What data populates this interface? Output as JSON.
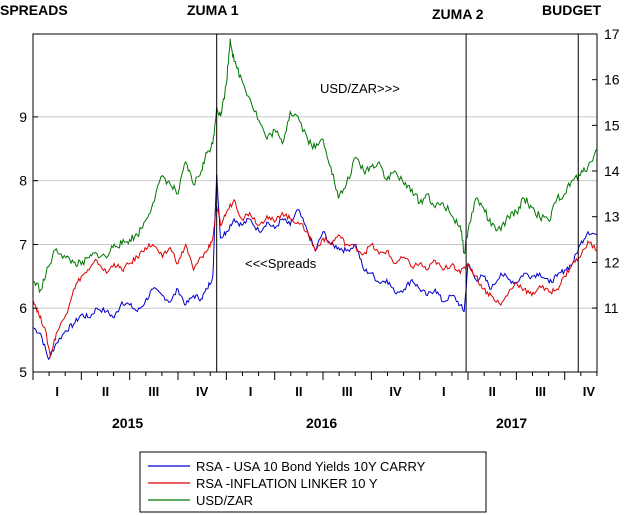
{
  "chart_data": {
    "type": "line",
    "top_labels": {
      "left_axis_title": "SPREADS",
      "events": [
        "ZUMA 1",
        "ZUMA 2",
        "BUDGET"
      ]
    },
    "annotations": {
      "usdzar": "USD/ZAR>>>",
      "spreads": "<<<Spreads"
    },
    "left_axis": {
      "ylim": [
        5,
        10.3
      ],
      "ticks": [
        5,
        6,
        7,
        8,
        9
      ]
    },
    "right_axis": {
      "ylim": [
        9.6,
        17
      ],
      "ticks": [
        11,
        12,
        13,
        14,
        15,
        16,
        17
      ]
    },
    "x_axis": {
      "xlim": [
        2015.0,
        2017.917
      ],
      "years": [
        {
          "label": "2015",
          "center": 2015.5
        },
        {
          "label": "2016",
          "center": 2016.5
        },
        {
          "label": "2017",
          "center": 2017.5
        }
      ],
      "quarter_labels": [
        "I",
        "II",
        "III",
        "IV"
      ]
    },
    "events": [
      {
        "label": "ZUMA 1",
        "x": 2015.95
      },
      {
        "label": "ZUMA 2",
        "x": 2017.24
      },
      {
        "label": "BUDGET",
        "x": 2017.82
      }
    ],
    "series": [
      {
        "name": "RSA - USA 10 Bond Yields 10Y CARRY",
        "color": "#0000cc",
        "axis": "left",
        "points": [
          [
            2015.0,
            5.7
          ],
          [
            2015.04,
            5.6
          ],
          [
            2015.08,
            5.2
          ],
          [
            2015.12,
            5.45
          ],
          [
            2015.17,
            5.65
          ],
          [
            2015.21,
            5.75
          ],
          [
            2015.25,
            5.9
          ],
          [
            2015.29,
            5.85
          ],
          [
            2015.33,
            6.0
          ],
          [
            2015.38,
            5.95
          ],
          [
            2015.42,
            5.85
          ],
          [
            2015.46,
            6.1
          ],
          [
            2015.5,
            6.05
          ],
          [
            2015.54,
            5.95
          ],
          [
            2015.58,
            6.1
          ],
          [
            2015.62,
            6.3
          ],
          [
            2015.67,
            6.2
          ],
          [
            2015.71,
            6.1
          ],
          [
            2015.75,
            6.3
          ],
          [
            2015.79,
            6.05
          ],
          [
            2015.83,
            6.2
          ],
          [
            2015.87,
            6.15
          ],
          [
            2015.9,
            6.3
          ],
          [
            2015.93,
            6.5
          ],
          [
            2015.95,
            8.1
          ],
          [
            2015.97,
            7.1
          ],
          [
            2016.0,
            7.2
          ],
          [
            2016.04,
            7.4
          ],
          [
            2016.08,
            7.3
          ],
          [
            2016.12,
            7.4
          ],
          [
            2016.17,
            7.2
          ],
          [
            2016.21,
            7.35
          ],
          [
            2016.25,
            7.25
          ],
          [
            2016.29,
            7.4
          ],
          [
            2016.33,
            7.3
          ],
          [
            2016.37,
            7.55
          ],
          [
            2016.42,
            7.2
          ],
          [
            2016.46,
            6.9
          ],
          [
            2016.5,
            7.2
          ],
          [
            2016.54,
            7.0
          ],
          [
            2016.58,
            6.95
          ],
          [
            2016.62,
            6.9
          ],
          [
            2016.67,
            7.0
          ],
          [
            2016.71,
            6.6
          ],
          [
            2016.75,
            6.55
          ],
          [
            2016.79,
            6.4
          ],
          [
            2016.83,
            6.45
          ],
          [
            2016.87,
            6.25
          ],
          [
            2016.92,
            6.3
          ],
          [
            2016.96,
            6.45
          ],
          [
            2017.0,
            6.3
          ],
          [
            2017.04,
            6.2
          ],
          [
            2017.08,
            6.3
          ],
          [
            2017.12,
            6.1
          ],
          [
            2017.17,
            6.2
          ],
          [
            2017.21,
            6.05
          ],
          [
            2017.23,
            5.95
          ],
          [
            2017.25,
            6.7
          ],
          [
            2017.29,
            6.45
          ],
          [
            2017.33,
            6.5
          ],
          [
            2017.37,
            6.3
          ],
          [
            2017.42,
            6.55
          ],
          [
            2017.46,
            6.45
          ],
          [
            2017.5,
            6.4
          ],
          [
            2017.54,
            6.55
          ],
          [
            2017.58,
            6.5
          ],
          [
            2017.62,
            6.55
          ],
          [
            2017.67,
            6.4
          ],
          [
            2017.71,
            6.5
          ],
          [
            2017.75,
            6.6
          ],
          [
            2017.79,
            6.7
          ],
          [
            2017.83,
            7.0
          ],
          [
            2017.87,
            7.2
          ],
          [
            2017.917,
            7.15
          ]
        ]
      },
      {
        "name": "RSA -INFLATION LINKER 10 Y",
        "color": "#dd0000",
        "axis": "left",
        "points": [
          [
            2015.0,
            6.15
          ],
          [
            2015.03,
            5.9
          ],
          [
            2015.06,
            5.7
          ],
          [
            2015.09,
            5.25
          ],
          [
            2015.12,
            5.6
          ],
          [
            2015.17,
            5.9
          ],
          [
            2015.21,
            6.3
          ],
          [
            2015.25,
            6.5
          ],
          [
            2015.29,
            6.6
          ],
          [
            2015.33,
            6.75
          ],
          [
            2015.38,
            6.55
          ],
          [
            2015.42,
            6.7
          ],
          [
            2015.46,
            6.6
          ],
          [
            2015.5,
            6.7
          ],
          [
            2015.54,
            6.8
          ],
          [
            2015.58,
            6.95
          ],
          [
            2015.62,
            7.0
          ],
          [
            2015.67,
            6.8
          ],
          [
            2015.71,
            6.95
          ],
          [
            2015.75,
            6.7
          ],
          [
            2015.79,
            7.0
          ],
          [
            2015.83,
            6.6
          ],
          [
            2015.87,
            6.8
          ],
          [
            2015.9,
            6.9
          ],
          [
            2015.93,
            7.1
          ],
          [
            2015.95,
            7.6
          ],
          [
            2015.97,
            7.3
          ],
          [
            2016.0,
            7.5
          ],
          [
            2016.04,
            7.7
          ],
          [
            2016.08,
            7.4
          ],
          [
            2016.12,
            7.5
          ],
          [
            2016.17,
            7.3
          ],
          [
            2016.21,
            7.45
          ],
          [
            2016.25,
            7.35
          ],
          [
            2016.29,
            7.5
          ],
          [
            2016.33,
            7.4
          ],
          [
            2016.37,
            7.35
          ],
          [
            2016.42,
            7.2
          ],
          [
            2016.46,
            6.9
          ],
          [
            2016.5,
            7.1
          ],
          [
            2016.54,
            7.0
          ],
          [
            2016.58,
            7.15
          ],
          [
            2016.62,
            7.0
          ],
          [
            2016.67,
            6.95
          ],
          [
            2016.71,
            6.85
          ],
          [
            2016.75,
            7.0
          ],
          [
            2016.79,
            6.85
          ],
          [
            2016.83,
            6.9
          ],
          [
            2016.87,
            6.7
          ],
          [
            2016.92,
            6.8
          ],
          [
            2016.96,
            6.65
          ],
          [
            2017.0,
            6.7
          ],
          [
            2017.04,
            6.6
          ],
          [
            2017.08,
            6.75
          ],
          [
            2017.12,
            6.6
          ],
          [
            2017.17,
            6.7
          ],
          [
            2017.21,
            6.55
          ],
          [
            2017.25,
            6.7
          ],
          [
            2017.29,
            6.5
          ],
          [
            2017.33,
            6.3
          ],
          [
            2017.37,
            6.2
          ],
          [
            2017.42,
            6.05
          ],
          [
            2017.46,
            6.25
          ],
          [
            2017.5,
            6.4
          ],
          [
            2017.54,
            6.3
          ],
          [
            2017.58,
            6.2
          ],
          [
            2017.62,
            6.35
          ],
          [
            2017.67,
            6.25
          ],
          [
            2017.71,
            6.3
          ],
          [
            2017.75,
            6.5
          ],
          [
            2017.79,
            6.7
          ],
          [
            2017.83,
            6.8
          ],
          [
            2017.87,
            7.05
          ],
          [
            2017.917,
            6.9
          ]
        ]
      },
      {
        "name": "USD/ZAR",
        "color": "#007700",
        "axis": "right",
        "points": [
          [
            2015.0,
            11.6
          ],
          [
            2015.04,
            11.4
          ],
          [
            2015.08,
            11.9
          ],
          [
            2015.12,
            12.3
          ],
          [
            2015.17,
            12.1
          ],
          [
            2015.21,
            12.0
          ],
          [
            2015.25,
            11.95
          ],
          [
            2015.29,
            12.1
          ],
          [
            2015.33,
            12.2
          ],
          [
            2015.38,
            12.1
          ],
          [
            2015.42,
            12.4
          ],
          [
            2015.46,
            12.4
          ],
          [
            2015.5,
            12.5
          ],
          [
            2015.54,
            12.6
          ],
          [
            2015.58,
            12.9
          ],
          [
            2015.62,
            13.3
          ],
          [
            2015.67,
            13.9
          ],
          [
            2015.71,
            13.7
          ],
          [
            2015.75,
            13.5
          ],
          [
            2015.79,
            14.2
          ],
          [
            2015.83,
            13.7
          ],
          [
            2015.87,
            14.0
          ],
          [
            2015.9,
            14.4
          ],
          [
            2015.93,
            14.6
          ],
          [
            2015.95,
            15.4
          ],
          [
            2015.97,
            15.2
          ],
          [
            2016.0,
            15.9
          ],
          [
            2016.02,
            16.9
          ],
          [
            2016.04,
            16.4
          ],
          [
            2016.08,
            16.0
          ],
          [
            2016.12,
            15.6
          ],
          [
            2016.17,
            15.1
          ],
          [
            2016.21,
            14.7
          ],
          [
            2016.25,
            14.9
          ],
          [
            2016.29,
            14.6
          ],
          [
            2016.33,
            15.3
          ],
          [
            2016.37,
            15.2
          ],
          [
            2016.42,
            14.7
          ],
          [
            2016.46,
            14.5
          ],
          [
            2016.5,
            14.7
          ],
          [
            2016.54,
            14.1
          ],
          [
            2016.58,
            13.4
          ],
          [
            2016.62,
            13.7
          ],
          [
            2016.67,
            14.3
          ],
          [
            2016.71,
            14.0
          ],
          [
            2016.75,
            14.1
          ],
          [
            2016.79,
            14.2
          ],
          [
            2016.83,
            13.8
          ],
          [
            2016.87,
            14.0
          ],
          [
            2016.92,
            13.7
          ],
          [
            2016.96,
            13.6
          ],
          [
            2017.0,
            13.3
          ],
          [
            2017.04,
            13.5
          ],
          [
            2017.08,
            13.2
          ],
          [
            2017.12,
            13.3
          ],
          [
            2017.17,
            13.0
          ],
          [
            2017.21,
            12.8
          ],
          [
            2017.23,
            12.2
          ],
          [
            2017.25,
            12.7
          ],
          [
            2017.29,
            13.4
          ],
          [
            2017.33,
            13.2
          ],
          [
            2017.37,
            12.8
          ],
          [
            2017.42,
            12.7
          ],
          [
            2017.46,
            13.0
          ],
          [
            2017.5,
            13.1
          ],
          [
            2017.54,
            13.4
          ],
          [
            2017.58,
            13.2
          ],
          [
            2017.62,
            13.0
          ],
          [
            2017.67,
            12.9
          ],
          [
            2017.71,
            13.4
          ],
          [
            2017.75,
            13.5
          ],
          [
            2017.79,
            13.8
          ],
          [
            2017.83,
            13.9
          ],
          [
            2017.87,
            14.1
          ],
          [
            2017.917,
            14.5
          ]
        ]
      }
    ]
  }
}
